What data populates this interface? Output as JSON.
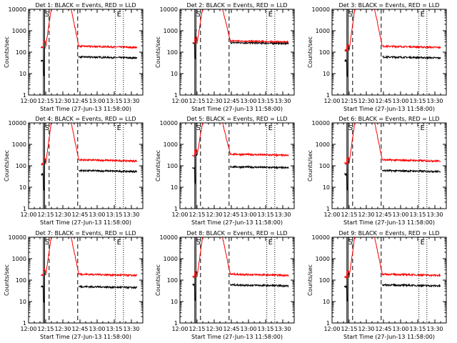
{
  "chart_data": {
    "type": "line",
    "y_scale": "log",
    "ylim": [
      1,
      10000
    ],
    "xlim": [
      "12:00",
      "13:40"
    ],
    "x_ticks": [
      "12:00",
      "12:15",
      "12:30",
      "12:45",
      "13:00",
      "13:15",
      "13:30"
    ],
    "y_ticks": [
      "1",
      "10",
      "100",
      "1000",
      "10000"
    ],
    "ylabel": "Counts/sec",
    "xlabel": "Start Time (27-Jun-13 11:58:00)",
    "series_colors": {
      "Events": "#000000",
      "LLD": "#ff0000"
    },
    "panels": [
      {
        "title": "Det 1: BLACK = Events, RED = LLD",
        "red_base": 150,
        "red_peak": 12000,
        "red_after": 190,
        "black_base": 50,
        "black_after": 60,
        "red_pre": 170,
        "black_pre": 40
      },
      {
        "title": "Det 2: BLACK = Events, RED = LLD",
        "red_base": 260,
        "red_peak": 12000,
        "red_after": 340,
        "black_base": 260,
        "black_after": 280,
        "red_pre": 260,
        "black_pre": 260
      },
      {
        "title": "Det 3: BLACK = Events, RED = LLD",
        "red_base": 120,
        "red_peak": 12000,
        "red_after": 190,
        "black_base": 50,
        "black_after": 60,
        "red_pre": 120,
        "black_pre": 40
      },
      {
        "title": "Det 4: BLACK = Events, RED = LLD",
        "red_base": 120,
        "red_peak": 12000,
        "red_after": 190,
        "black_base": 50,
        "black_after": 60,
        "red_pre": 120,
        "black_pre": 40
      },
      {
        "title": "Det 5: BLACK = Events, RED = LLD",
        "red_base": 300,
        "red_peak": 12000,
        "red_after": 350,
        "black_base": 80,
        "black_after": 90,
        "red_pre": 300,
        "black_pre": 80
      },
      {
        "title": "Det 6: BLACK = Events, RED = LLD",
        "red_base": 130,
        "red_peak": 12000,
        "red_after": 190,
        "black_base": 50,
        "black_after": 60,
        "red_pre": 130,
        "black_pre": 40
      },
      {
        "title": "Det 7: BLACK = Events, RED = LLD",
        "red_base": 170,
        "red_peak": 12000,
        "red_after": 190,
        "black_base": 50,
        "black_after": 50,
        "red_pre": 170,
        "black_pre": 50
      },
      {
        "title": "Det 8: BLACK = Events, RED = LLD",
        "red_base": 140,
        "red_peak": 12000,
        "red_after": 190,
        "black_base": 60,
        "black_after": 60,
        "red_pre": 140,
        "black_pre": 60
      },
      {
        "title": "Det 9: BLACK = Events, RED = LLD",
        "red_base": 140,
        "red_peak": 12000,
        "red_after": 190,
        "black_base": 50,
        "black_after": 60,
        "red_pre": 140,
        "black_pre": 50
      }
    ],
    "vertical_markers": {
      "solid": [
        "12:13",
        "12:14"
      ],
      "dashed": [
        "12:18",
        "12:43"
      ],
      "dotted": [
        "13:16",
        "13:23"
      ],
      "letters": [
        "S",
        "E"
      ]
    }
  }
}
